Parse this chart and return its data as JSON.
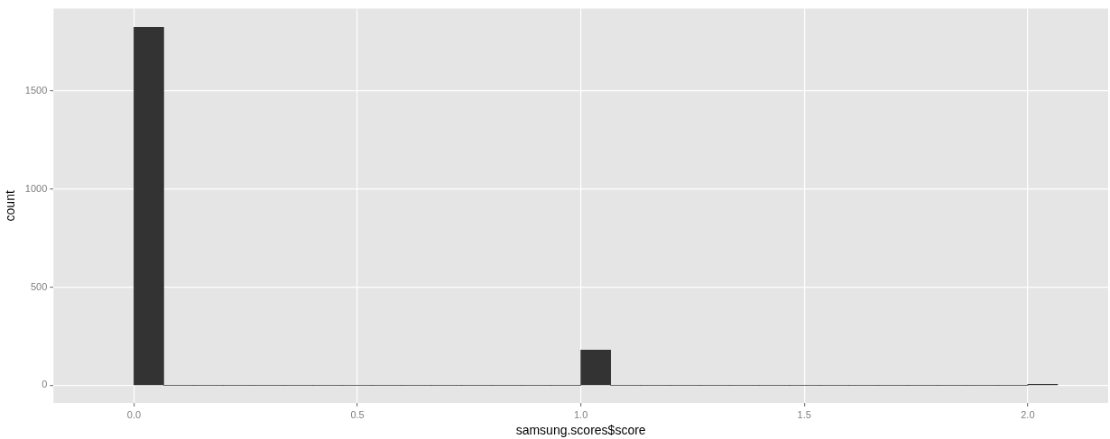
{
  "chart_data": {
    "type": "histogram",
    "xlabel": "samsung.scores$score",
    "ylabel": "count",
    "color": "#333333",
    "bins": [
      0,
      0.0667,
      0.1333,
      0.2,
      0.2667,
      0.3333,
      0.4,
      0.4667,
      0.5333,
      0.6,
      0.6667,
      0.7333,
      0.8,
      0.8667,
      0.9333,
      1,
      1.0667,
      1.1333,
      1.2,
      1.2667,
      1.3333,
      1.4,
      1.4667,
      1.5333,
      1.6,
      1.6667,
      1.7333,
      1.8,
      1.8667,
      1.9333,
      2,
      2.0667
    ],
    "values": [
      1825,
      0,
      0,
      0,
      0,
      0,
      0,
      0,
      0,
      0,
      0,
      0,
      0,
      0,
      0,
      180,
      0,
      0,
      0,
      0,
      0,
      0,
      0,
      0,
      0,
      0,
      0,
      0,
      0,
      0,
      5
    ],
    "xlim": [
      -0.18,
      2.18
    ],
    "xticks": [
      {
        "value": 0,
        "label": "0.0"
      },
      {
        "value": 0.5,
        "label": "0.5"
      },
      {
        "value": 1,
        "label": "1.0"
      },
      {
        "value": 1.5,
        "label": "1.5"
      },
      {
        "value": 2,
        "label": "2.0"
      }
    ],
    "ylim": [
      -90,
      1920
    ],
    "yticks": [
      0,
      500,
      1000,
      1500
    ],
    "grid": true
  }
}
